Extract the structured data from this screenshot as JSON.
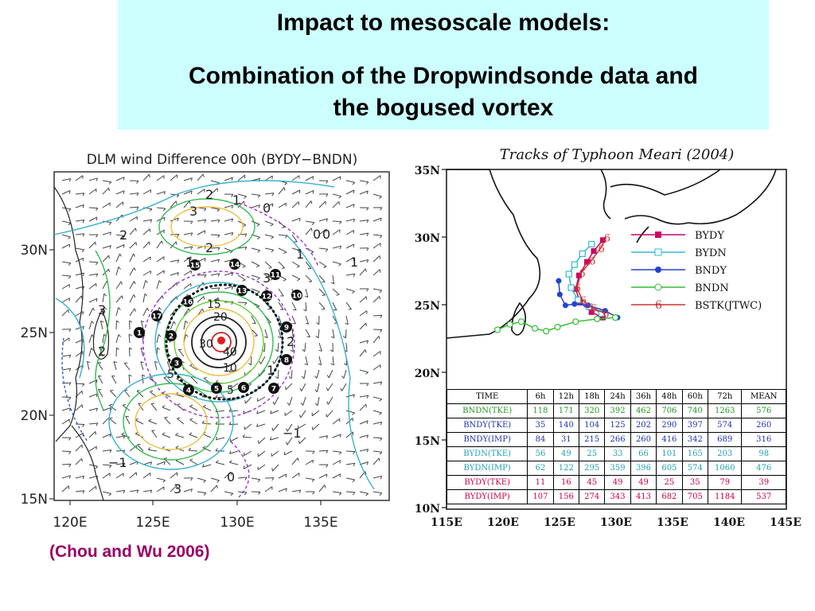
{
  "title": {
    "line1": "Impact to mesoscale models:",
    "line2": "Combination of the Dropwindsonde data and",
    "line3": "the bogused vortex"
  },
  "citation": "(Chou and Wu 2006)",
  "left_map": {
    "title": "DLM wind Difference 00h (BYDY−BNDN)",
    "lat_labels": [
      "30N",
      "25N",
      "20N",
      "15N"
    ],
    "lon_labels": [
      "120E",
      "125E",
      "130E",
      "135E"
    ],
    "contour_labels": [
      "2",
      "1",
      "0",
      "3",
      "2",
      "0",
      "0",
      "1",
      "2",
      "3",
      "1",
      "2",
      "1",
      "15",
      "20",
      "30",
      "40",
      "10",
      "5",
      "5",
      "−1",
      "−1",
      "3",
      "0",
      "1",
      "3",
      "2"
    ],
    "dropsonde_points": [
      "1",
      "2",
      "3",
      "4",
      "5",
      "6",
      "7",
      "8",
      "9",
      "10",
      "11",
      "12",
      "13",
      "14",
      "15",
      "16",
      "17"
    ]
  },
  "track_chart": {
    "title": "Tracks of Typhoon Meari (2004)",
    "lat_labels": [
      "35N",
      "30N",
      "25N",
      "20N",
      "15N",
      "10N"
    ],
    "lon_labels": [
      "115E",
      "120E",
      "125E",
      "130E",
      "135E",
      "140E",
      "145E"
    ],
    "legend": [
      {
        "name": "BYDY",
        "color": "#cc0066"
      },
      {
        "name": "BYDN",
        "color": "#33bbcc"
      },
      {
        "name": "BNDY",
        "color": "#2244cc"
      },
      {
        "name": "BNDN",
        "color": "#33bb33"
      },
      {
        "name": "BSTK(JTWC)",
        "color": "#cc3333"
      }
    ],
    "table": {
      "headers": [
        "TIME",
        "6h",
        "12h",
        "18h",
        "24h",
        "36h",
        "48h",
        "60h",
        "72h",
        "MEAN"
      ],
      "rows": [
        {
          "label": "BNDN(TKE)",
          "color": "#229922",
          "values": [
            "118",
            "171",
            "320",
            "392",
            "462",
            "706",
            "740",
            "1263",
            "576"
          ]
        },
        {
          "label": "BNDY(TKE)",
          "color": "#2233aa",
          "values": [
            "35",
            "140",
            "104",
            "125",
            "202",
            "290",
            "397",
            "574",
            "260"
          ]
        },
        {
          "label": "BNDY(IMP)",
          "color": "#2233aa",
          "values": [
            "84",
            "31",
            "215",
            "266",
            "260",
            "416",
            "342",
            "689",
            "316"
          ]
        },
        {
          "label": "BYDN(TKE)",
          "color": "#22a0b0",
          "values": [
            "56",
            "49",
            "25",
            "33",
            "66",
            "101",
            "165",
            "203",
            "98"
          ]
        },
        {
          "label": "BYDN(IMP)",
          "color": "#22a0b0",
          "values": [
            "62",
            "122",
            "295",
            "359",
            "396",
            "605",
            "574",
            "1060",
            "476"
          ]
        },
        {
          "label": "BYDY(TKE)",
          "color": "#cc0044",
          "values": [
            "11",
            "16",
            "45",
            "49",
            "49",
            "25",
            "35",
            "79",
            "39"
          ]
        },
        {
          "label": "BYDY(IMP)",
          "color": "#cc0044",
          "values": [
            "107",
            "156",
            "274",
            "343",
            "413",
            "682",
            "705",
            "1184",
            "537"
          ]
        }
      ]
    }
  }
}
